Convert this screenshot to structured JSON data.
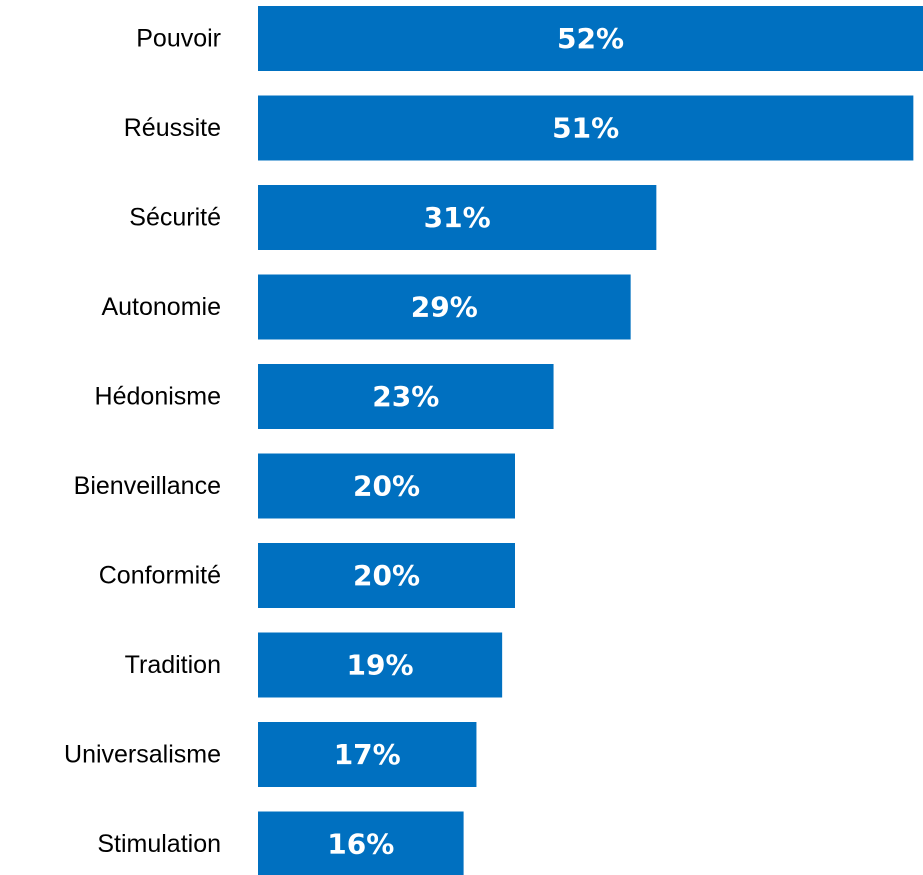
{
  "chart_data": {
    "type": "bar",
    "orientation": "horizontal",
    "categories": [
      "Pouvoir",
      "Réussite",
      "Sécurité",
      "Autonomie",
      "Hédonisme",
      "Bienveillance",
      "Conformité",
      "Tradition",
      "Universalisme",
      "Stimulation"
    ],
    "values": [
      52,
      51,
      31,
      29,
      23,
      20,
      20,
      19,
      17,
      16
    ],
    "value_labels": [
      "52%",
      "51%",
      "31%",
      "29%",
      "23%",
      "20%",
      "20%",
      "19%",
      "17%",
      "16%"
    ],
    "unit": "%",
    "title": "",
    "xlabel": "",
    "ylabel": "",
    "grid": false,
    "legend": "none",
    "bar_color": "#0070C0"
  }
}
